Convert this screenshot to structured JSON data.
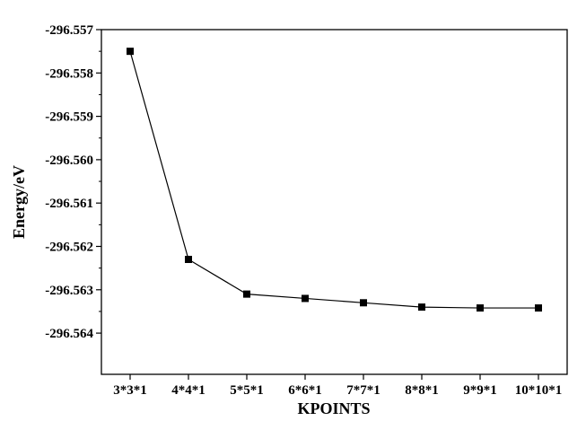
{
  "chart_data": {
    "type": "line",
    "title": "",
    "xlabel": "KPOINTS",
    "ylabel": "Energy/eV",
    "categories": [
      "3*3*1",
      "4*4*1",
      "5*5*1",
      "6*6*1",
      "7*7*1",
      "8*8*1",
      "9*9*1",
      "10*10*1"
    ],
    "series": [
      {
        "values": [
          -296.5575,
          -296.5623,
          -296.5631,
          -296.5632,
          -296.5633,
          -296.5634,
          -296.56342,
          -296.56342
        ],
        "marker": "square",
        "color": "#000000"
      }
    ],
    "y_ticks": [
      -296.557,
      -296.558,
      -296.559,
      -296.56,
      -296.561,
      -296.562,
      -296.563,
      -296.564
    ],
    "y_tick_labels": [
      "-296.557",
      "-296.558",
      "-296.559",
      "-296.560",
      "-296.561",
      "-296.562",
      "-296.563",
      "-296.564"
    ],
    "ylim": [
      -296.5642,
      -296.557
    ],
    "grid": false,
    "legend": "none"
  }
}
